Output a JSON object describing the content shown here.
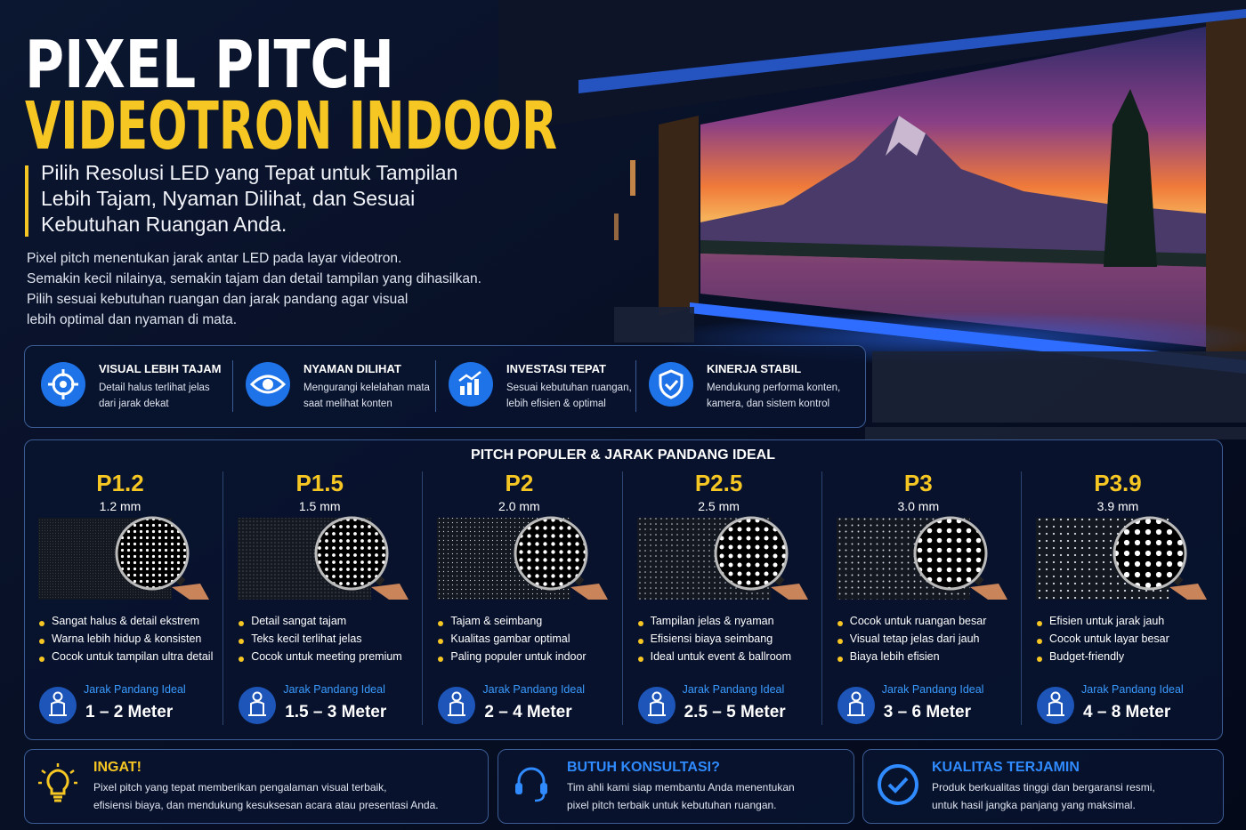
{
  "header": {
    "title_line1": "PIXEL PITCH",
    "title_line2": "VIDEOTRON INDOOR",
    "subtitle_lines": [
      "Pilih Resolusi LED yang Tepat untuk Tampilan",
      "Lebih Tajam, Nyaman Dilihat, dan Sesuai",
      "Kebutuhan Ruangan Anda."
    ],
    "intro_lines": [
      "Pixel pitch menentukan jarak antar LED pada layar videotron.",
      "Semakin kecil nilainya, semakin tajam dan detail tampilan yang dihasilkan.",
      "Pilih sesuai kebutuhan ruangan dan jarak pandang agar visual",
      "lebih optimal dan nyaman di mata."
    ]
  },
  "features": [
    {
      "title": "VISUAL LEBIH TAJAM",
      "text_lines": [
        "Detail halus terlihat jelas",
        "dari jarak dekat"
      ]
    },
    {
      "title": "NYAMAN DILIHAT",
      "text_lines": [
        "Mengurangi kelelahan mata",
        "saat melihat konten"
      ]
    },
    {
      "title": "INVESTASI TEPAT",
      "text_lines": [
        "Sesuai kebutuhan ruangan,",
        "lebih efisien & optimal"
      ]
    },
    {
      "title": "KINERJA STABIL",
      "text_lines": [
        "Mendukung performa konten,",
        "kamera, dan sistem kontrol"
      ]
    }
  ],
  "pitch_section": {
    "title": "PITCH POPULER & JARAK PANDANG IDEAL",
    "distance_label": "Jarak Pandang Ideal",
    "items": [
      {
        "name": "P1.2",
        "size": "1.2 mm",
        "points": [
          "Sangat halus & detail ekstrem",
          "Warna lebih hidup & konsisten",
          "Cocok untuk tampilan ultra detail"
        ],
        "distance": "1 – 2 Meter"
      },
      {
        "name": "P1.5",
        "size": "1.5 mm",
        "points": [
          "Detail sangat tajam",
          "Teks kecil terlihat jelas",
          "Cocok untuk meeting premium"
        ],
        "distance": "1.5 – 3 Meter"
      },
      {
        "name": "P2",
        "size": "2.0 mm",
        "points": [
          "Tajam & seimbang",
          "Kualitas gambar optimal",
          "Paling populer untuk indoor"
        ],
        "distance": "2 – 4 Meter"
      },
      {
        "name": "P2.5",
        "size": "2.5 mm",
        "points": [
          "Tampilan jelas & nyaman",
          "Efisiensi biaya seimbang",
          "Ideal untuk event & ballroom"
        ],
        "distance": "2.5 – 5 Meter"
      },
      {
        "name": "P3",
        "size": "3.0 mm",
        "points": [
          "Cocok untuk ruangan besar",
          "Visual tetap jelas dari jauh",
          "Biaya lebih efisien"
        ],
        "distance": "3 – 6 Meter"
      },
      {
        "name": "P3.9",
        "size": "3.9 mm",
        "points": [
          "Efisien untuk jarak jauh",
          "Cocok untuk layar besar",
          "Budget-friendly"
        ],
        "distance": "4 – 8 Meter"
      }
    ]
  },
  "footer": [
    {
      "title": "INGAT!",
      "text_lines": [
        "Pixel pitch yang tepat memberikan pengalaman visual terbaik,",
        "efisiensi biaya, dan mendukung kesuksesan acara atau presentasi Anda."
      ]
    },
    {
      "title": "BUTUH KONSULTASI?",
      "text_lines": [
        "Tim ahli kami siap membantu Anda menentukan",
        "pixel pitch terbaik untuk kebutuhan ruangan."
      ]
    },
    {
      "title": "KUALITAS TERJAMIN",
      "text_lines": [
        "Produk berkualitas tinggi dan bergaransi resmi,",
        "untuk hasil jangka panjang yang maksimal."
      ]
    }
  ]
}
